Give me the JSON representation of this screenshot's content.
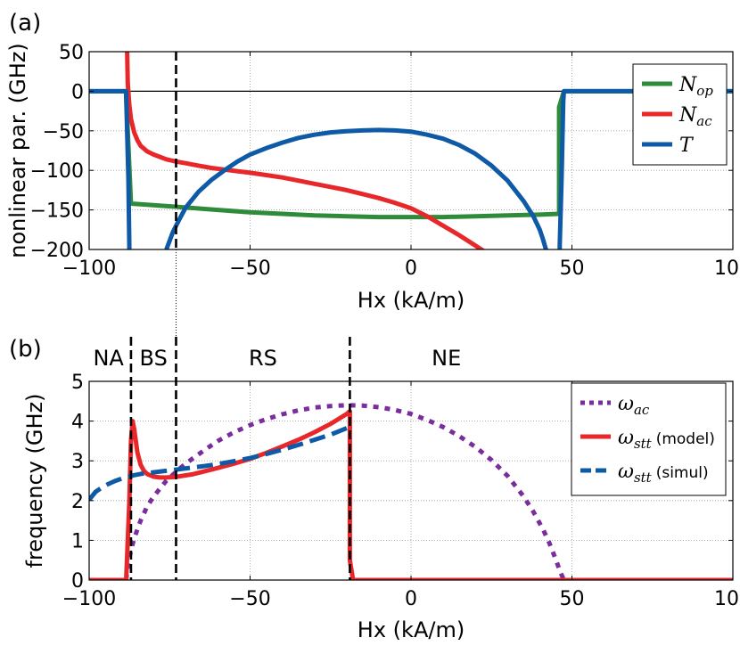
{
  "chart_data": [
    {
      "type": "line",
      "panel_label": "(a)",
      "xlabel": "Hx (kA/m)",
      "ylabel": "nonlinear par. (GHz)",
      "xlim": [
        -100,
        100
      ],
      "ylim": [
        -200,
        50
      ],
      "xticks": [
        -100,
        -50,
        0,
        50,
        100
      ],
      "xtick_labels": [
        "−100",
        "−50",
        "0",
        "50",
        "100"
      ],
      "yticks": [
        -200,
        -150,
        -100,
        -50,
        0,
        50
      ],
      "ytick_labels": [
        "−200",
        "−150",
        "−100",
        "−50",
        "0",
        "50"
      ],
      "grid": true,
      "zero_line": true,
      "vlines": [
        {
          "x": -73,
          "style": "dashed"
        }
      ],
      "legend_position": "top-right",
      "series": [
        {
          "name": "N",
          "sub": "op",
          "color": "#2e8b3a",
          "style": "solid",
          "x": [
            -100,
            -88.5,
            -88.5,
            -87,
            -80,
            -70,
            -60,
            -50,
            -40,
            -30,
            -20,
            -10,
            0,
            10,
            20,
            30,
            40,
            46,
            46,
            47.5,
            100
          ],
          "y": [
            0,
            0,
            -5,
            -142,
            -144,
            -147,
            -150,
            -153,
            -155,
            -157,
            -158,
            -159,
            -159,
            -159,
            -158,
            -157,
            -156,
            -155,
            -20,
            0,
            0
          ]
        },
        {
          "name": "N",
          "sub": "ac",
          "color": "#e8272a",
          "style": "solid",
          "x": [
            -88.2,
            -88,
            -87.5,
            -87,
            -86,
            -85,
            -84,
            -82,
            -80,
            -78,
            -76,
            -74,
            -72,
            -70,
            -66,
            -62,
            -58,
            -54,
            -50,
            -45,
            -40,
            -35,
            -30,
            -25,
            -20,
            -15,
            -10,
            -5,
            0,
            5,
            10,
            15,
            20,
            23
          ],
          "y": [
            50,
            10,
            -18,
            -35,
            -52,
            -62,
            -69,
            -76,
            -80,
            -83,
            -86,
            -88,
            -89.5,
            -91,
            -94,
            -97,
            -99,
            -101,
            -103,
            -106,
            -109,
            -113,
            -117,
            -121,
            -125,
            -130,
            -135,
            -141,
            -148,
            -158,
            -170,
            -182,
            -195,
            -203
          ]
        },
        {
          "name": "T",
          "sub": "",
          "color": "#0e5aa6",
          "style": "solid",
          "x": [
            -100,
            -88.5,
            -88.5,
            -87.8,
            -87.5,
            null,
            -76,
            -74,
            -72,
            -70,
            -66,
            -62,
            -58,
            -54,
            -50,
            -45,
            -40,
            -35,
            -30,
            -25,
            -20,
            -15,
            -10,
            -5,
            0,
            5,
            10,
            15,
            20,
            25,
            30,
            35,
            38,
            40,
            41,
            42,
            null,
            46.2,
            46.2,
            46.8,
            47.3,
            47.5,
            100
          ],
          "y": [
            0,
            0,
            -5,
            -110,
            -200,
            null,
            -200,
            -178,
            -162,
            -147,
            -127,
            -112,
            -100,
            -89,
            -80,
            -72,
            -65,
            -59,
            -55,
            -52,
            -50.5,
            -49.5,
            -49,
            -49.5,
            -51,
            -55,
            -60,
            -68,
            -79,
            -94,
            -113,
            -139,
            -158,
            -175,
            -187,
            -201,
            null,
            -205,
            -195,
            -110,
            -12,
            0,
            0
          ]
        }
      ]
    },
    {
      "type": "line",
      "panel_label": "(b)",
      "xlabel": "Hx (kA/m)",
      "ylabel": "frequency (GHz)",
      "xlim": [
        -100,
        100
      ],
      "ylim": [
        0,
        5
      ],
      "xticks": [
        -100,
        -50,
        0,
        50,
        100
      ],
      "xtick_labels": [
        "−100",
        "−50",
        "0",
        "50",
        "100"
      ],
      "yticks": [
        0,
        1,
        2,
        3,
        4,
        5
      ],
      "ytick_labels": [
        "0",
        "1",
        "2",
        "3",
        "4",
        "5"
      ],
      "grid": true,
      "vlines": [
        {
          "x": -87
        },
        {
          "x": -73
        },
        {
          "x": -19
        }
      ],
      "regions": [
        {
          "label": "NA",
          "x": -94
        },
        {
          "label": "BS",
          "x": -80
        },
        {
          "label": "RS",
          "x": -46
        },
        {
          "label": "NE",
          "x": 11
        }
      ],
      "legend_position": "top-right",
      "series": [
        {
          "name": "ω",
          "sub": "ac",
          "extra": "",
          "color": "#7a2d9c",
          "style": "dotted",
          "x": [
            -88.5,
            -88,
            -87,
            -86,
            -84,
            -82,
            -80,
            -76,
            -72,
            -68,
            -64,
            -60,
            -55,
            -50,
            -45,
            -40,
            -35,
            -30,
            -25,
            -20,
            -15,
            -10,
            -5,
            0,
            5,
            10,
            15,
            20,
            25,
            30,
            35,
            38,
            41,
            43,
            44.5,
            45.5,
            46.5,
            47.5
          ],
          "y": [
            0,
            0.35,
            0.75,
            1.05,
            1.5,
            1.85,
            2.1,
            2.5,
            2.8,
            3.05,
            3.28,
            3.5,
            3.72,
            3.9,
            4.05,
            4.17,
            4.27,
            4.34,
            4.38,
            4.4,
            4.39,
            4.35,
            4.28,
            4.18,
            4.03,
            3.85,
            3.62,
            3.35,
            3.02,
            2.62,
            2.1,
            1.72,
            1.28,
            0.93,
            0.62,
            0.4,
            0.18,
            0
          ]
        },
        {
          "name": "ω",
          "sub": "stt",
          "extra": "(model)",
          "color": "#e8272a",
          "style": "solid",
          "x": [
            -100,
            -88.5,
            -87.5,
            -87,
            -86.5,
            -86,
            -85,
            -84,
            -83,
            -82,
            -80,
            -78,
            -76,
            -74,
            -72,
            -68,
            -64,
            -60,
            -55,
            -50,
            -45,
            -40,
            -35,
            -30,
            -25,
            -20,
            -19,
            -19,
            -18,
            100
          ],
          "y": [
            0,
            0,
            2.0,
            3.5,
            4.0,
            3.8,
            3.2,
            2.9,
            2.75,
            2.67,
            2.6,
            2.58,
            2.58,
            2.59,
            2.61,
            2.66,
            2.74,
            2.82,
            2.93,
            3.05,
            3.2,
            3.36,
            3.53,
            3.72,
            3.93,
            4.18,
            4.25,
            0.5,
            0,
            0
          ]
        },
        {
          "name": "ω",
          "sub": "stt",
          "extra": "(simul)",
          "color": "#0e5aa6",
          "style": "dashed",
          "x": [
            -100,
            -98,
            -96,
            -94,
            -92,
            -90,
            -88,
            -86,
            -84,
            -82,
            -80,
            -76,
            -72,
            -68,
            -64,
            -60,
            -55,
            -50,
            -45,
            -40,
            -35,
            -30,
            -25,
            -20,
            -18
          ],
          "y": [
            2.02,
            2.22,
            2.33,
            2.42,
            2.49,
            2.55,
            2.6,
            2.64,
            2.67,
            2.69,
            2.71,
            2.75,
            2.79,
            2.83,
            2.87,
            2.92,
            2.99,
            3.07,
            3.17,
            3.28,
            3.4,
            3.53,
            3.66,
            3.82,
            3.88
          ]
        }
      ]
    }
  ]
}
